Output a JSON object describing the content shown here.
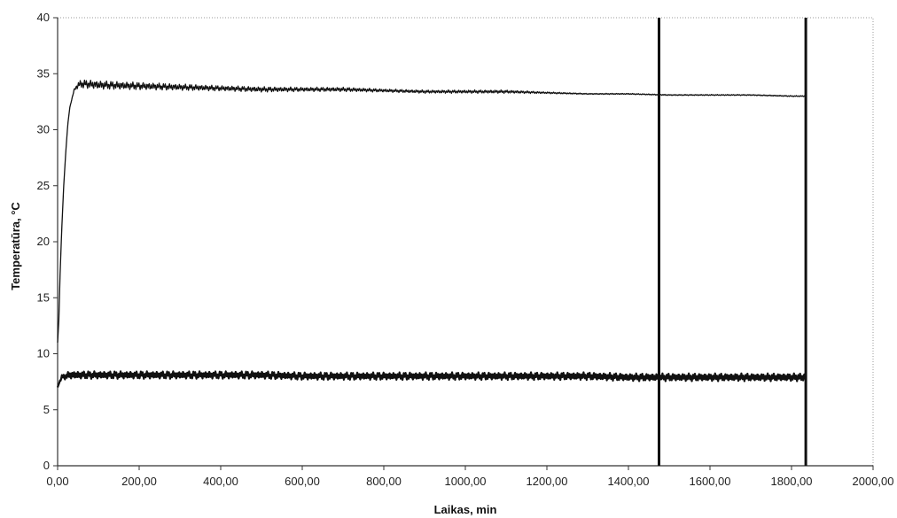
{
  "chart_data": {
    "type": "line",
    "xlabel": "Laikas, min",
    "ylabel": "Temperatūra, °C",
    "xlim": [
      0,
      2000
    ],
    "ylim": [
      0,
      40
    ],
    "x_ticks": [
      0,
      200,
      400,
      600,
      800,
      1000,
      1200,
      1400,
      1600,
      1800,
      2000
    ],
    "x_tick_labels": [
      "0,00",
      "200,00",
      "400,00",
      "600,00",
      "800,00",
      "1000,00",
      "1200,00",
      "1400,00",
      "1600,00",
      "1800,00",
      "2000,00"
    ],
    "y_ticks": [
      0,
      5,
      10,
      15,
      20,
      25,
      30,
      35,
      40
    ],
    "y_tick_labels": [
      "0",
      "5",
      "10",
      "15",
      "20",
      "25",
      "30",
      "35",
      "40"
    ],
    "grid": false,
    "legend": "none",
    "vertical_markers": [
      1475,
      1835
    ],
    "series": [
      {
        "x": [
          0,
          3,
          6,
          10,
          15,
          20,
          25,
          30,
          40,
          50,
          60,
          100,
          200,
          300,
          400,
          500,
          600,
          700,
          800,
          900,
          1000,
          1100,
          1200,
          1300,
          1400,
          1500,
          1600,
          1700,
          1800,
          1835
        ],
        "y": [
          11,
          13,
          17,
          21,
          25,
          28,
          30.5,
          32,
          33.5,
          34,
          34.1,
          34.0,
          33.9,
          33.8,
          33.7,
          33.6,
          33.6,
          33.6,
          33.5,
          33.4,
          33.4,
          33.4,
          33.3,
          33.2,
          33.2,
          33.1,
          33.1,
          33.1,
          33.0,
          33.0
        ],
        "noise_amp": [
          0,
          0,
          0,
          0,
          0,
          0,
          0,
          0,
          0.1,
          0.3,
          0.4,
          0.4,
          0.35,
          0.3,
          0.25,
          0.25,
          0.2,
          0.2,
          0.15,
          0.15,
          0.15,
          0.15,
          0.08,
          0.05,
          0.05,
          0.05,
          0.05,
          0.05,
          0.05,
          0.05
        ],
        "color": "#111111"
      },
      {
        "x": [
          0,
          3,
          6,
          10,
          20,
          30,
          50,
          100,
          200,
          300,
          400,
          500,
          600,
          700,
          800,
          900,
          1000,
          1100,
          1200,
          1300,
          1400,
          1500,
          1600,
          1700,
          1800,
          1835
        ],
        "y": [
          7.0,
          7.3,
          7.6,
          7.9,
          8.0,
          8.1,
          8.1,
          8.1,
          8.1,
          8.1,
          8.1,
          8.1,
          8.0,
          8.0,
          8.0,
          8.0,
          8.0,
          8.0,
          8.0,
          8.0,
          7.9,
          7.9,
          7.9,
          7.9,
          7.9,
          7.9
        ],
        "noise_amp": [
          0,
          0,
          0.1,
          0.2,
          0.3,
          0.35,
          0.35,
          0.35,
          0.35,
          0.35,
          0.35,
          0.35,
          0.35,
          0.35,
          0.35,
          0.35,
          0.35,
          0.35,
          0.35,
          0.35,
          0.35,
          0.35,
          0.35,
          0.35,
          0.35,
          0.35
        ],
        "color": "#111111"
      }
    ]
  }
}
